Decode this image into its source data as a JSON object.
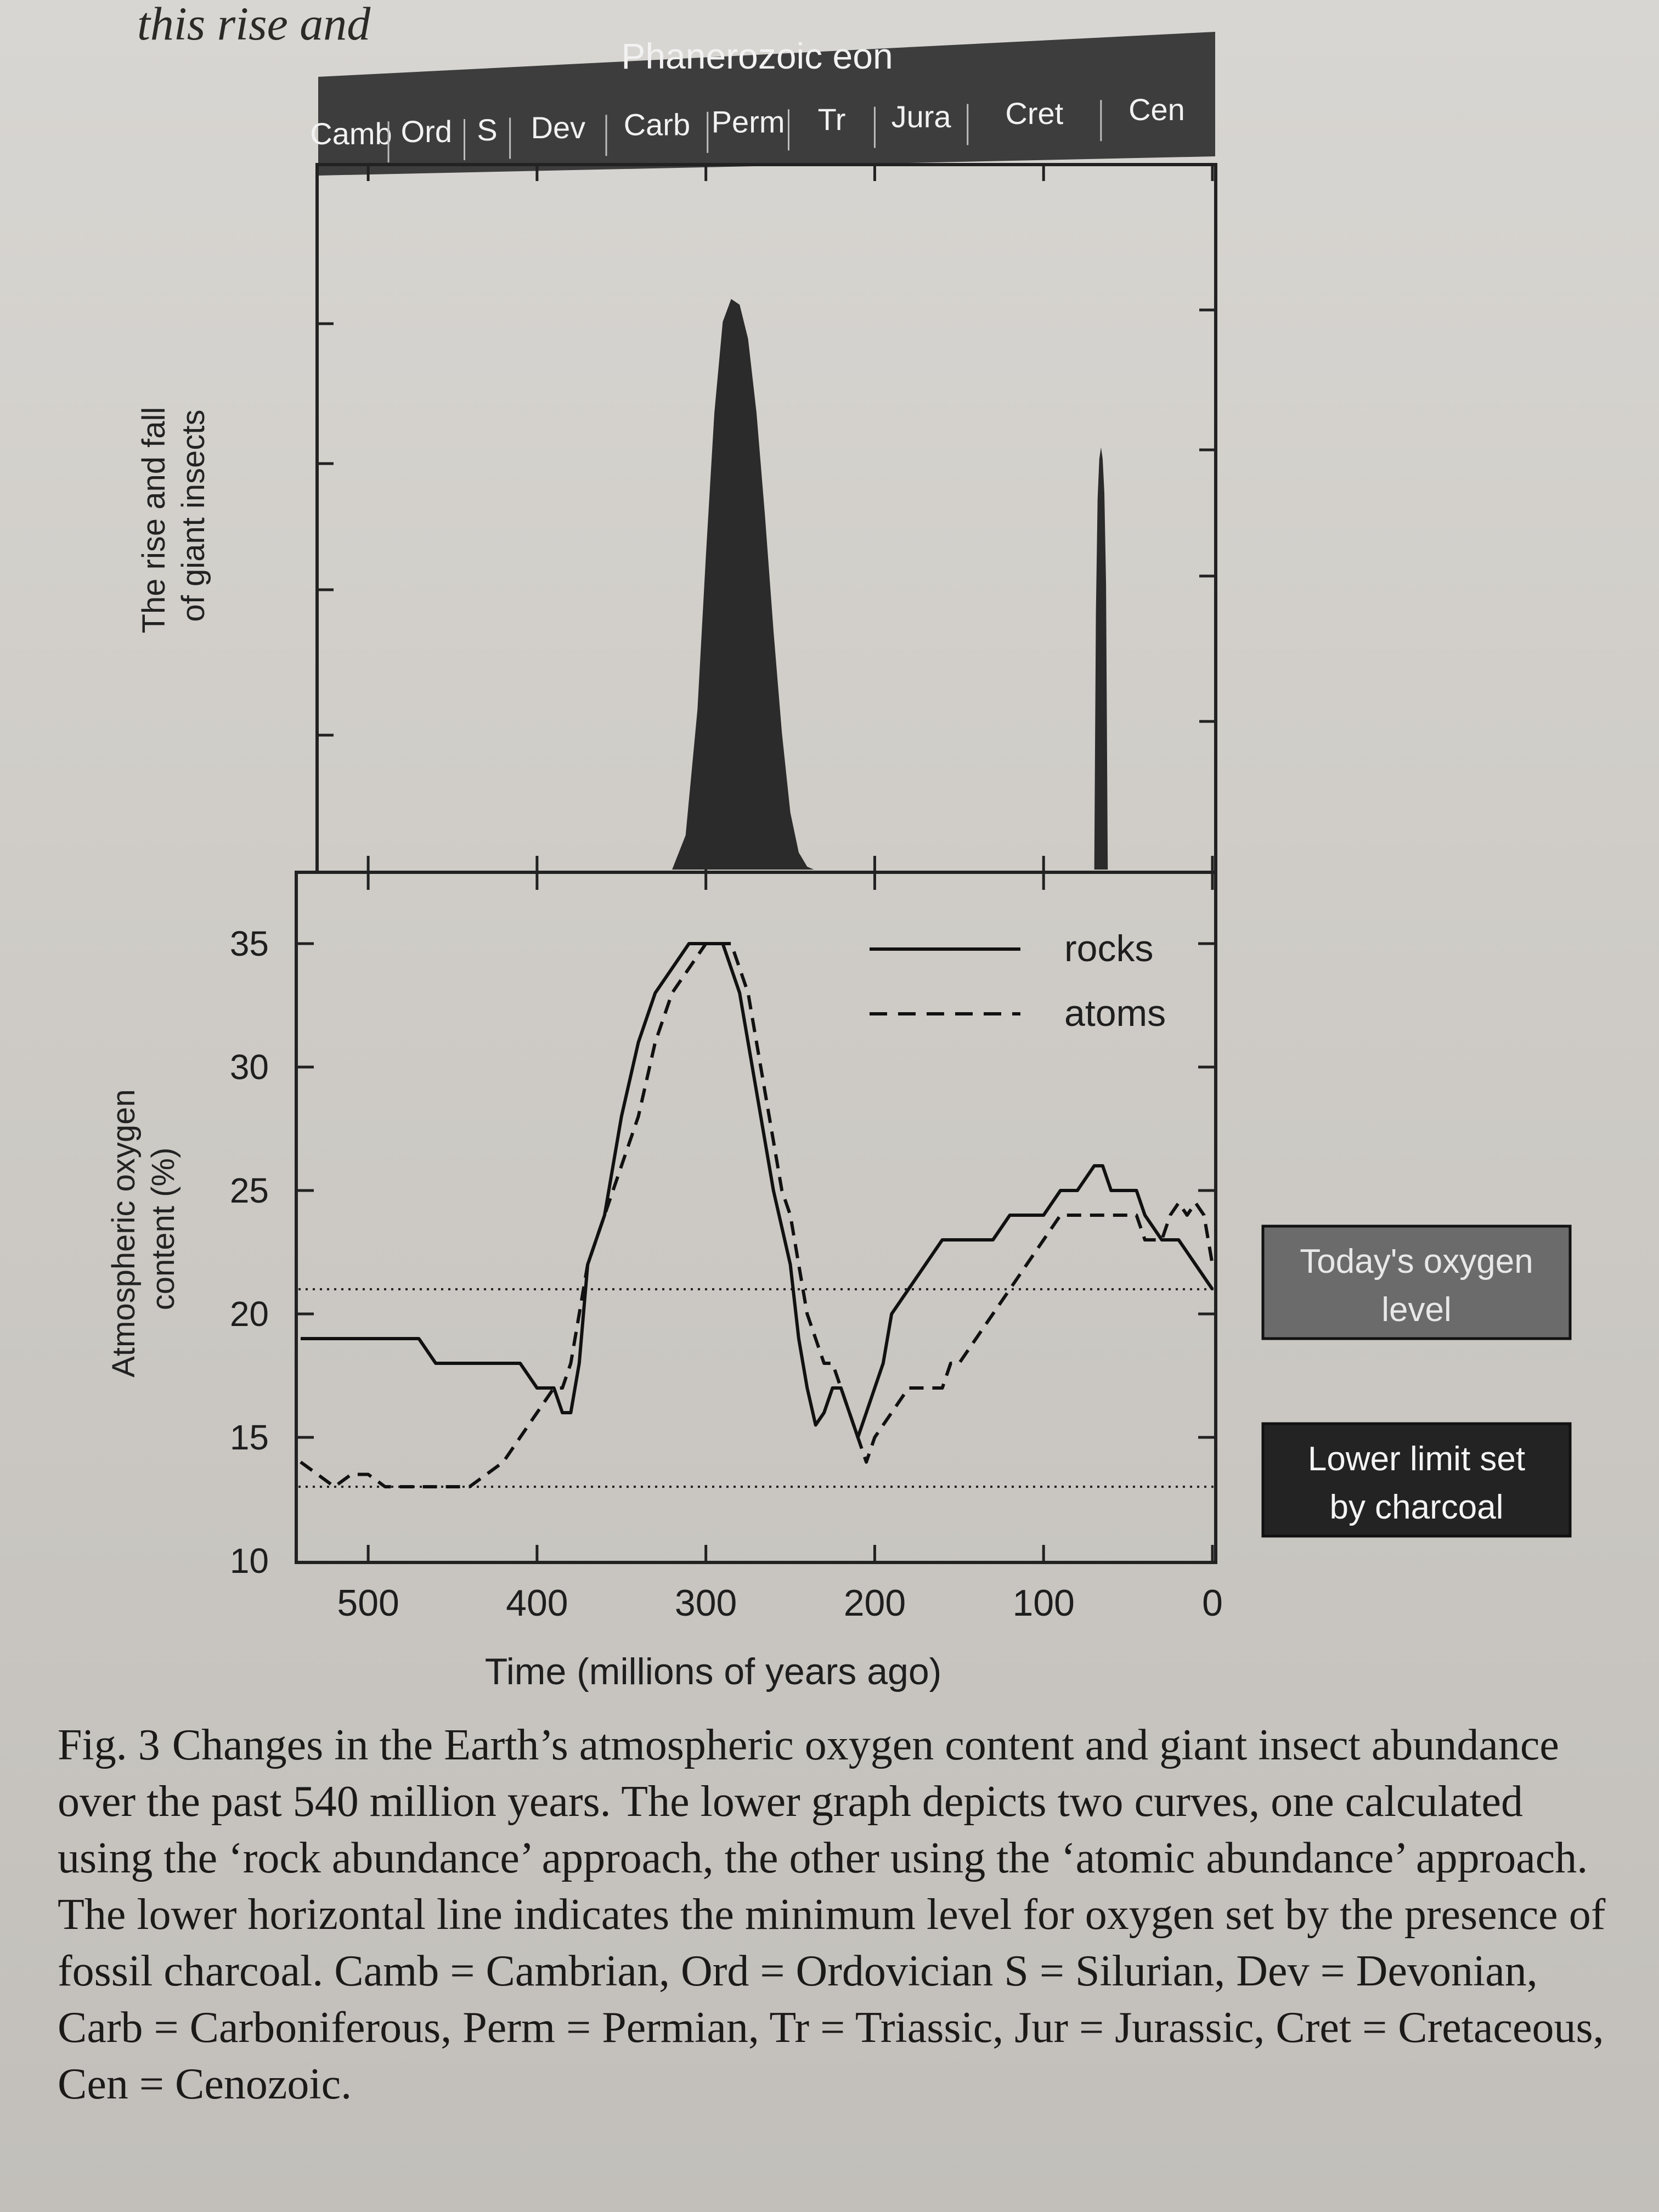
{
  "top_text": "this rise and",
  "header": {
    "eon": "Phanerozoic eon",
    "periods": [
      {
        "label": "Camb",
        "start": 540,
        "end": 488
      },
      {
        "label": "Ord",
        "start": 488,
        "end": 443
      },
      {
        "label": "S",
        "start": 443,
        "end": 416
      },
      {
        "label": "Dev",
        "start": 416,
        "end": 359
      },
      {
        "label": "Carb",
        "start": 359,
        "end": 299
      },
      {
        "label": "Perm",
        "start": 299,
        "end": 251
      },
      {
        "label": "Tr",
        "start": 251,
        "end": 200
      },
      {
        "label": "Jura",
        "start": 200,
        "end": 145
      },
      {
        "label": "Cret",
        "start": 145,
        "end": 66
      },
      {
        "label": "Cen",
        "start": 66,
        "end": 0
      }
    ]
  },
  "chart_data": [
    {
      "type": "area",
      "ylabel": "The rise and fall of giant insects",
      "xlim": [
        540,
        0
      ],
      "series": [
        {
          "x": [
            320,
            312,
            305,
            300,
            295,
            290,
            285,
            280,
            275,
            270,
            265,
            260,
            255,
            250,
            245,
            240,
            236
          ],
          "y": [
            0,
            0.06,
            0.28,
            0.55,
            0.8,
            0.96,
            1.0,
            0.99,
            0.93,
            0.8,
            0.62,
            0.42,
            0.24,
            0.1,
            0.03,
            0.005,
            0
          ]
        },
        {
          "x": [
            70,
            69,
            68,
            67,
            66,
            65,
            64,
            63,
            62
          ],
          "y": [
            0,
            0.45,
            0.65,
            0.72,
            0.74,
            0.72,
            0.66,
            0.5,
            0
          ]
        }
      ]
    },
    {
      "type": "line",
      "xlabel": "Time (millions of years ago)",
      "ylabel": "Atmospheric oxygen content (%)",
      "xlim": [
        540,
        0
      ],
      "ylim": [
        10,
        37
      ],
      "xticks": [
        500,
        400,
        300,
        200,
        100,
        0
      ],
      "yticks": [
        10,
        15,
        20,
        25,
        30,
        35
      ],
      "legend_position": "top-right",
      "series": [
        {
          "name": "rocks",
          "style": "solid",
          "x": [
            540,
            520,
            500,
            480,
            470,
            460,
            440,
            420,
            410,
            400,
            395,
            390,
            385,
            380,
            375,
            370,
            365,
            360,
            355,
            350,
            340,
            330,
            320,
            310,
            300,
            295,
            290,
            285,
            280,
            275,
            270,
            265,
            260,
            250,
            245,
            240,
            235,
            230,
            225,
            220,
            215,
            210,
            205,
            200,
            195,
            190,
            180,
            170,
            160,
            150,
            140,
            130,
            120,
            110,
            100,
            90,
            80,
            70,
            65,
            60,
            50,
            45,
            40,
            30,
            20,
            10,
            5,
            0
          ],
          "y": [
            19.0,
            19.0,
            19.0,
            19.0,
            19.0,
            18.0,
            18.0,
            18.0,
            18.0,
            17.0,
            17.0,
            17.0,
            16.0,
            16.0,
            18.0,
            22.0,
            23.0,
            24.0,
            26.0,
            28.0,
            31.0,
            33.0,
            34.0,
            35.0,
            35.0,
            35.0,
            35.0,
            34.0,
            33.0,
            31.0,
            29.0,
            27.0,
            25.0,
            22.0,
            19.0,
            17.0,
            15.5,
            16.0,
            17.0,
            17.0,
            16.0,
            15.0,
            16.0,
            17.0,
            18.0,
            20.0,
            21.0,
            22.0,
            23.0,
            23.0,
            23.0,
            23.0,
            24.0,
            24.0,
            24.0,
            25.0,
            25.0,
            26.0,
            26.0,
            25.0,
            25.0,
            25.0,
            24.0,
            23.0,
            23.0,
            22.0,
            21.5,
            21.0
          ]
        },
        {
          "name": "atoms",
          "style": "dashed",
          "x": [
            540,
            530,
            520,
            510,
            500,
            490,
            480,
            470,
            460,
            450,
            440,
            430,
            420,
            410,
            400,
            395,
            390,
            385,
            380,
            375,
            370,
            365,
            360,
            350,
            340,
            330,
            320,
            310,
            300,
            290,
            285,
            280,
            275,
            270,
            265,
            260,
            255,
            250,
            245,
            240,
            235,
            230,
            225,
            220,
            215,
            210,
            205,
            200,
            190,
            180,
            170,
            160,
            155,
            150,
            140,
            130,
            120,
            110,
            100,
            90,
            80,
            70,
            60,
            50,
            45,
            40,
            35,
            30,
            25,
            20,
            15,
            10,
            5,
            0
          ],
          "y": [
            14.0,
            13.5,
            13.0,
            13.5,
            13.5,
            13.0,
            13.0,
            13.0,
            13.0,
            13.0,
            13.0,
            13.5,
            14.0,
            15.0,
            16.0,
            16.5,
            17.0,
            17.0,
            18.0,
            20.0,
            22.0,
            23.0,
            24.0,
            26.0,
            28.0,
            31.0,
            33.0,
            34.0,
            35.0,
            35.0,
            35.0,
            34.0,
            33.0,
            31.0,
            29.0,
            27.0,
            25.0,
            24.0,
            22.0,
            20.0,
            19.0,
            18.0,
            18.0,
            17.0,
            16.0,
            15.0,
            14.0,
            15.0,
            16.0,
            17.0,
            17.0,
            17.0,
            18.0,
            18.0,
            19.0,
            20.0,
            21.0,
            22.0,
            23.0,
            24.0,
            24.0,
            24.0,
            24.0,
            24.0,
            24.0,
            23.0,
            23.0,
            23.0,
            24.0,
            24.5,
            24.0,
            24.5,
            24.0,
            22.0
          ]
        }
      ],
      "reference_lines": [
        {
          "label": "Today's oxygen level",
          "y": 21,
          "box_color": "#6b6b6b"
        },
        {
          "label": "Lower limit set by charcoal",
          "y": 13,
          "box_color": "#232323"
        }
      ]
    }
  ],
  "caption": {
    "fig_num": "Fig. 3",
    "text": "Changes in the Earth’s atmospheric oxygen content and giant insect abundance over the past 540 million years. The lower graph depicts two curves, one calculated using the ‘rock abundance’ approach, the other using the ‘atomic abundance’ approach. The lower horizontal line indicates the minimum level for oxygen set by the presence of fossil charcoal. Camb = Cambrian, Ord = Ordovician S = Silurian, Dev = Devonian, Carb = Carboniferous, Perm = Permian, Tr = Triassic, Jur = Jurassic, Cret = Cretaceous, Cen = Cenozoic."
  }
}
